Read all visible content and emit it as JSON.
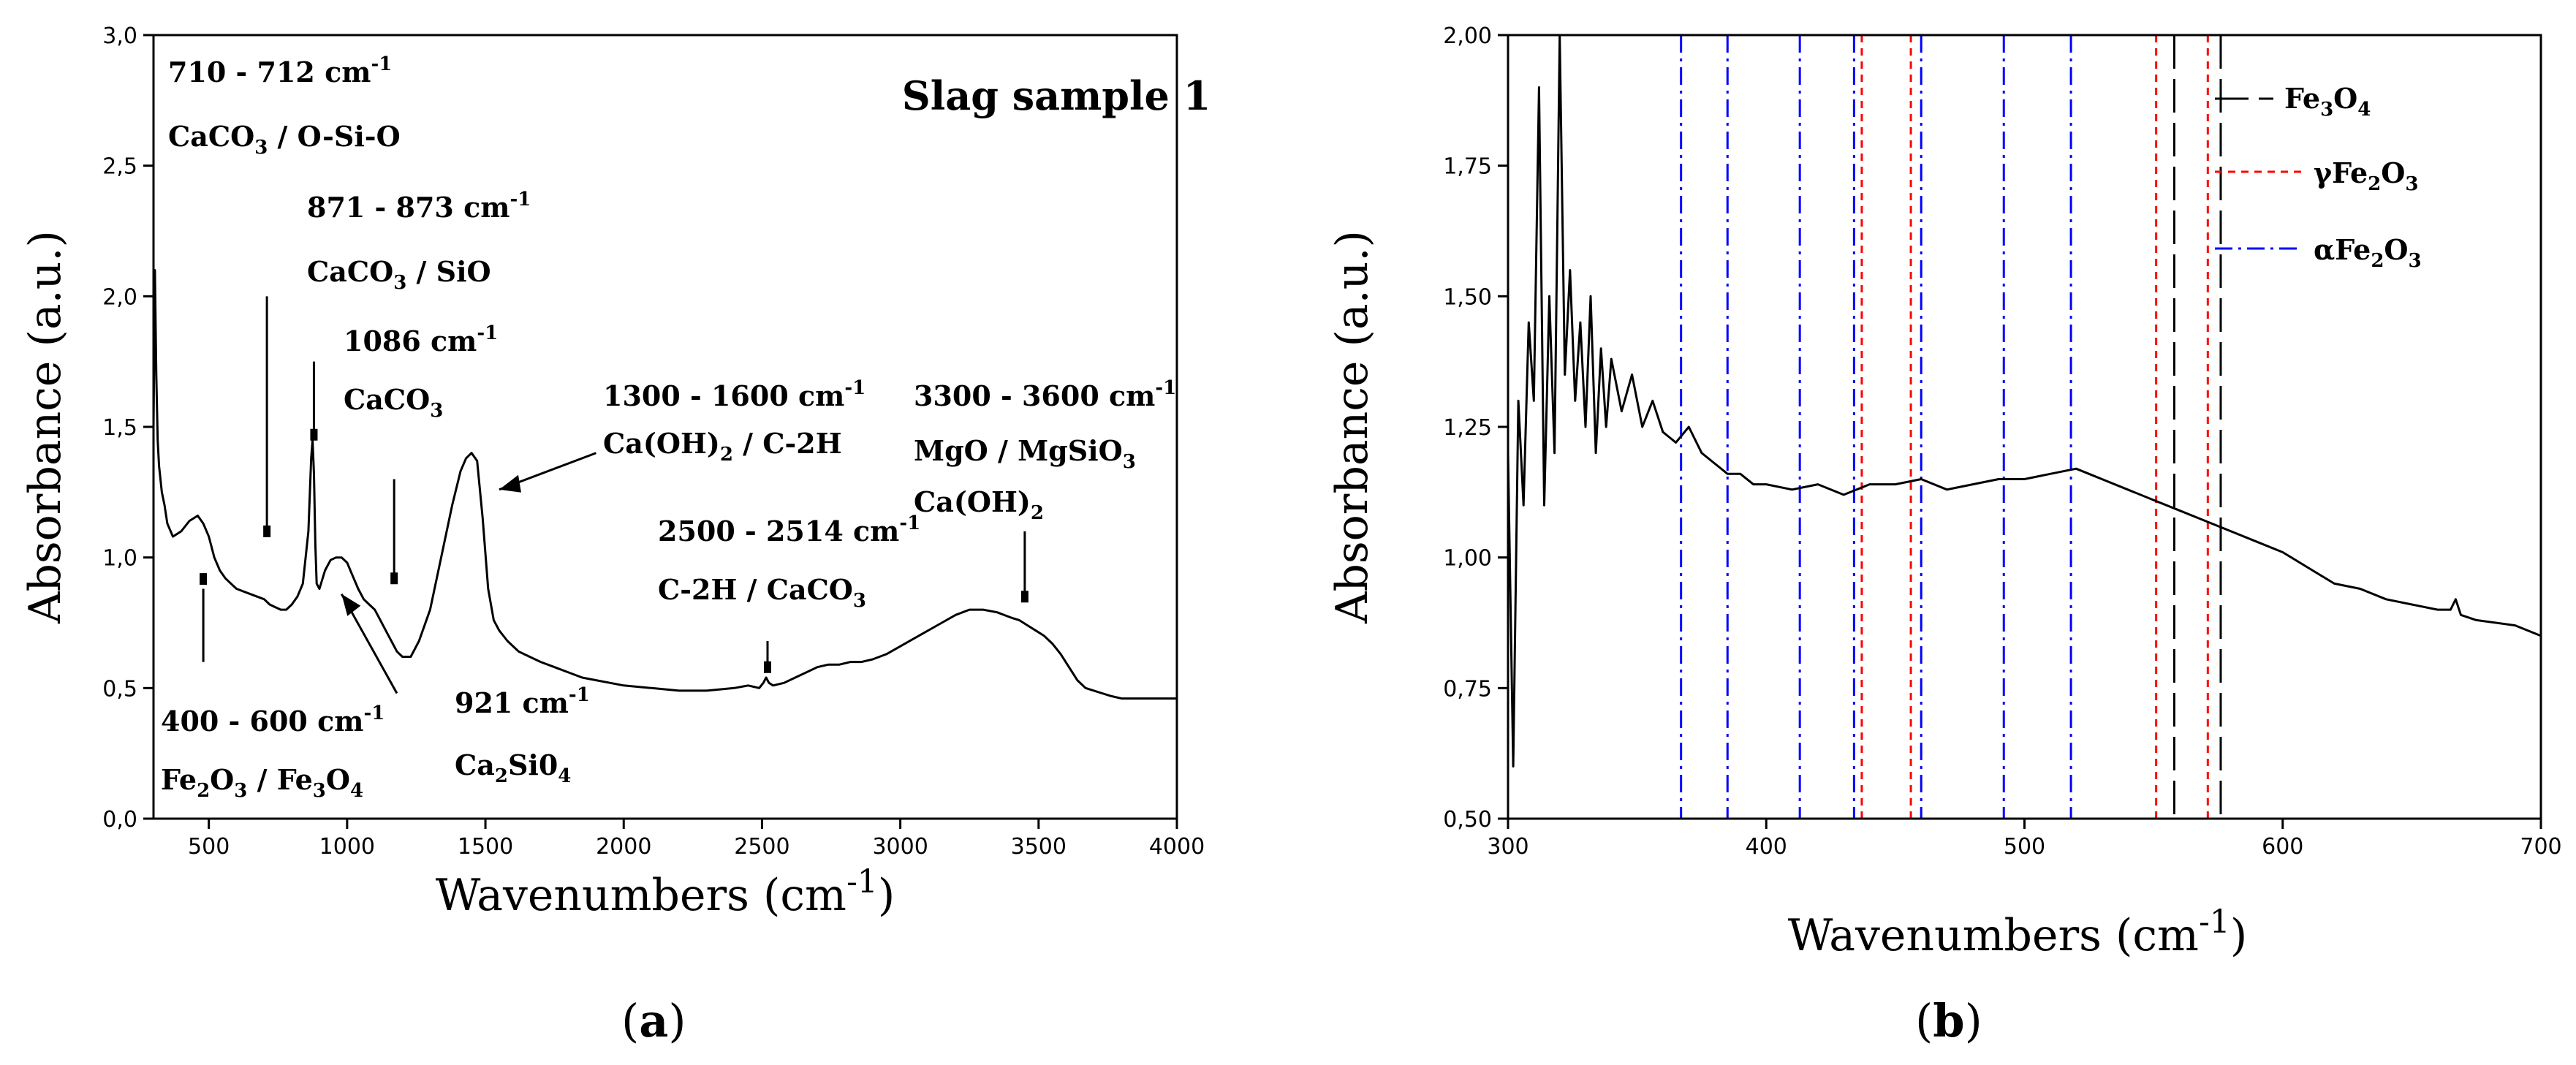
{
  "panel_a_label": "a",
  "panel_b_label": "b",
  "chart_data": [
    {
      "id": "a",
      "type": "line",
      "title": "Slag sample 1",
      "xlabel": "Wavenumbers (cm",
      "xlabel_sup": "-1",
      "xlabel_close": ")",
      "ylabel": "Absorbance (a.u.)",
      "xlim": [
        300,
        4000
      ],
      "ylim": [
        0,
        3
      ],
      "xticks": [
        {
          "v": 500,
          "t": "500"
        },
        {
          "v": 1000,
          "t": "1000"
        },
        {
          "v": 1500,
          "t": "1500"
        },
        {
          "v": 2000,
          "t": "2000"
        },
        {
          "v": 2500,
          "t": "2500"
        },
        {
          "v": 3000,
          "t": "3000"
        },
        {
          "v": 3500,
          "t": "3500"
        },
        {
          "v": 4000,
          "t": "4000"
        }
      ],
      "yticks": [
        {
          "v": 0.0,
          "t": "0,0"
        },
        {
          "v": 0.5,
          "t": "0,5"
        },
        {
          "v": 1.0,
          "t": "1,0"
        },
        {
          "v": 1.5,
          "t": "1,5"
        },
        {
          "v": 2.0,
          "t": "2,0"
        },
        {
          "v": 2.5,
          "t": "2,5"
        },
        {
          "v": 3.0,
          "t": "3,0"
        }
      ],
      "series": [
        {
          "color": "#000000",
          "x": [
            300,
            305,
            310,
            315,
            320,
            330,
            340,
            350,
            370,
            400,
            430,
            460,
            480,
            500,
            520,
            540,
            560,
            600,
            650,
            700,
            720,
            740,
            760,
            780,
            800,
            820,
            840,
            860,
            870,
            875,
            880,
            885,
            890,
            900,
            920,
            940,
            960,
            980,
            1000,
            1020,
            1040,
            1060,
            1080,
            1100,
            1120,
            1140,
            1160,
            1180,
            1200,
            1230,
            1260,
            1300,
            1340,
            1380,
            1410,
            1430,
            1450,
            1470,
            1490,
            1510,
            1530,
            1550,
            1580,
            1620,
            1660,
            1700,
            1750,
            1800,
            1850,
            1900,
            1950,
            2000,
            2100,
            2200,
            2300,
            2400,
            2450,
            2490,
            2505,
            2515,
            2525,
            2540,
            2580,
            2620,
            2660,
            2700,
            2740,
            2780,
            2820,
            2860,
            2900,
            2950,
            3000,
            3050,
            3100,
            3150,
            3200,
            3250,
            3300,
            3350,
            3400,
            3430,
            3460,
            3490,
            3520,
            3550,
            3580,
            3610,
            3640,
            3670,
            3700,
            3730,
            3760,
            3800,
            3850,
            3900,
            3950,
            4000
          ],
          "y": [
            1.5,
            2.1,
            1.7,
            1.45,
            1.35,
            1.25,
            1.2,
            1.13,
            1.08,
            1.1,
            1.14,
            1.16,
            1.13,
            1.08,
            1.0,
            0.95,
            0.92,
            0.88,
            0.86,
            0.84,
            0.82,
            0.81,
            0.8,
            0.8,
            0.82,
            0.85,
            0.9,
            1.1,
            1.38,
            1.45,
            1.32,
            1.05,
            0.9,
            0.88,
            0.95,
            0.99,
            1.0,
            1.0,
            0.98,
            0.93,
            0.88,
            0.84,
            0.82,
            0.8,
            0.76,
            0.72,
            0.68,
            0.64,
            0.62,
            0.62,
            0.68,
            0.8,
            1.0,
            1.2,
            1.33,
            1.38,
            1.4,
            1.37,
            1.15,
            0.88,
            0.76,
            0.72,
            0.68,
            0.64,
            0.62,
            0.6,
            0.58,
            0.56,
            0.54,
            0.53,
            0.52,
            0.51,
            0.5,
            0.49,
            0.49,
            0.5,
            0.51,
            0.5,
            0.52,
            0.54,
            0.52,
            0.51,
            0.52,
            0.54,
            0.56,
            0.58,
            0.59,
            0.59,
            0.6,
            0.6,
            0.61,
            0.63,
            0.66,
            0.69,
            0.72,
            0.75,
            0.78,
            0.8,
            0.8,
            0.79,
            0.77,
            0.76,
            0.74,
            0.72,
            0.7,
            0.67,
            0.63,
            0.58,
            0.53,
            0.5,
            0.49,
            0.48,
            0.47,
            0.46,
            0.46,
            0.46,
            0.46,
            0.46
          ]
        }
      ],
      "annotations": [
        {
          "line1": "710 - 712 cm",
          "sup1": "-1",
          "line2a": "CaCO",
          "sub2a": "3",
          "line2b": " / O-Si-O"
        },
        {
          "line1": "871 - 873 cm",
          "sup1": "-1",
          "line2a": "CaCO",
          "sub2a": "3",
          "line2b": " / SiO"
        },
        {
          "line1": "1086 cm",
          "sup1": "-1",
          "line2a": "CaCO",
          "sub2a": "3",
          "line2b": ""
        },
        {
          "line1": "1300 - 1600 cm",
          "sup1": "-1",
          "line2a": "Ca(OH)",
          "sub2a": "2",
          "line2b": " / C-2H"
        },
        {
          "line1": "3300 - 3600 cm",
          "sup1": "-1",
          "line2a": "MgO / MgSiO",
          "sub2a": "3",
          "line2b": "",
          "line3a": "Ca(OH)",
          "sub3a": "2"
        },
        {
          "line1": "2500 - 2514 cm",
          "sup1": "-1",
          "line2a": "C-2H / CaCO",
          "sub2a": "3",
          "line2b": ""
        },
        {
          "line1": "400 - 600 cm",
          "sup1": "-1",
          "line2a": "Fe",
          "sub2a": "2",
          "line2b": "O",
          "sub2b": "3",
          "line2c": " / Fe",
          "sub2c": "3",
          "line2d": "O",
          "sub2d": "4"
        },
        {
          "line1": "921 cm",
          "sup1": "-1",
          "line2a": "Ca",
          "sub2a": "2",
          "line2b": "Si0",
          "sub2b": "4"
        }
      ]
    },
    {
      "id": "b",
      "type": "line",
      "xlabel": "Wavenumbers (cm",
      "xlabel_sup": "-1",
      "xlabel_close": ")",
      "ylabel": "Absorbance (a.u.)",
      "xlim": [
        300,
        700
      ],
      "ylim": [
        0.5,
        2.0
      ],
      "xticks": [
        {
          "v": 300,
          "t": "300"
        },
        {
          "v": 400,
          "t": "400"
        },
        {
          "v": 500,
          "t": "500"
        },
        {
          "v": 600,
          "t": "600"
        },
        {
          "v": 700,
          "t": "700"
        }
      ],
      "yticks": [
        {
          "v": 0.5,
          "t": "0,50"
        },
        {
          "v": 0.75,
          "t": "0,75"
        },
        {
          "v": 1.0,
          "t": "1,00"
        },
        {
          "v": 1.25,
          "t": "1,25"
        },
        {
          "v": 1.5,
          "t": "1,50"
        },
        {
          "v": 1.75,
          "t": "1,75"
        },
        {
          "v": 2.0,
          "t": "2,00"
        }
      ],
      "series": [
        {
          "color": "#000000",
          "x": [
            300,
            302,
            304,
            306,
            308,
            310,
            312,
            314,
            316,
            318,
            320,
            322,
            324,
            326,
            328,
            330,
            332,
            334,
            336,
            338,
            340,
            344,
            348,
            352,
            356,
            360,
            365,
            370,
            375,
            380,
            385,
            390,
            395,
            400,
            410,
            420,
            430,
            440,
            450,
            460,
            470,
            480,
            490,
            500,
            510,
            520,
            525,
            530,
            540,
            550,
            560,
            570,
            580,
            590,
            600,
            610,
            620,
            630,
            640,
            650,
            660,
            665,
            667,
            669,
            675,
            690,
            700
          ],
          "y": [
            1.2,
            0.6,
            1.3,
            1.1,
            1.45,
            1.3,
            1.9,
            1.1,
            1.5,
            1.2,
            2.0,
            1.35,
            1.55,
            1.3,
            1.45,
            1.25,
            1.5,
            1.2,
            1.4,
            1.25,
            1.38,
            1.28,
            1.35,
            1.25,
            1.3,
            1.24,
            1.22,
            1.25,
            1.2,
            1.18,
            1.16,
            1.16,
            1.14,
            1.14,
            1.13,
            1.14,
            1.12,
            1.14,
            1.14,
            1.15,
            1.13,
            1.14,
            1.15,
            1.15,
            1.16,
            1.17,
            1.16,
            1.15,
            1.13,
            1.11,
            1.09,
            1.07,
            1.05,
            1.03,
            1.01,
            0.98,
            0.95,
            0.94,
            0.92,
            0.91,
            0.9,
            0.9,
            0.92,
            0.89,
            0.88,
            0.87,
            0.85
          ]
        }
      ],
      "reference_lines": [
        {
          "name": "Fe3O4",
          "color": "#000000",
          "dash": "long-dash",
          "positions": [
            558,
            576
          ]
        },
        {
          "name": "γFe2O3",
          "color": "#ff0000",
          "dash": "short-dash",
          "positions": [
            437,
            456,
            551,
            571
          ]
        },
        {
          "name": "αFe2O3",
          "color": "#0000ff",
          "dash": "dash-dot",
          "positions": [
            367,
            385,
            413,
            434,
            460,
            492,
            518
          ]
        }
      ],
      "legend": {
        "placement": "top-right",
        "entries": [
          {
            "a": "Fe",
            "s1": "3",
            "b": "O",
            "s2": "4"
          },
          {
            "a": "γFe",
            "s1": "2",
            "b": "O",
            "s2": "3"
          },
          {
            "a": "αFe",
            "s1": "2",
            "b": "O",
            "s2": "3"
          }
        ]
      }
    }
  ]
}
